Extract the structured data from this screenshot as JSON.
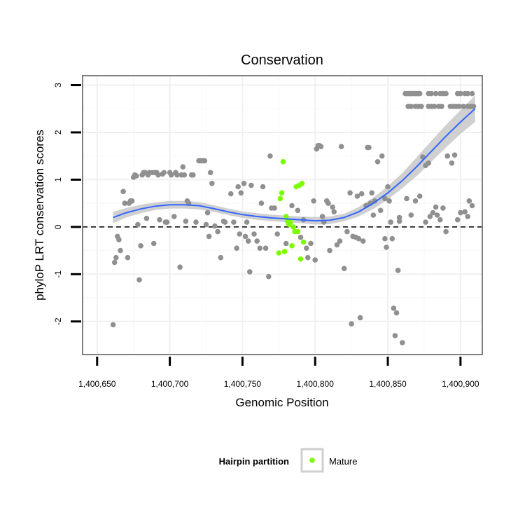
{
  "chart_data": {
    "type": "scatter",
    "title": "Conservation",
    "xlabel": "Genomic Position",
    "ylabel": "phyloP LRT conservation scores",
    "xlim": [
      1400640,
      1400915
    ],
    "ylim": [
      -2.7,
      3.2
    ],
    "x_ticks": [
      1400650,
      1400700,
      1400750,
      1400800,
      1400850,
      1400900
    ],
    "x_tick_labels": [
      "1,400,650",
      "1,400,700",
      "1,400,750",
      "1,400,800",
      "1,400,850",
      "1,400,900"
    ],
    "y_ticks": [
      -2,
      -1,
      0,
      1,
      2,
      3
    ],
    "y_tick_labels": [
      "-2",
      "-1",
      "0",
      "1",
      "2",
      "3"
    ],
    "grid": true,
    "reference_line": {
      "y": 0,
      "style": "dashed"
    },
    "legend": {
      "title": "Hairpin partition",
      "entries": [
        {
          "label": "Mature",
          "color": "#7CFC00"
        }
      ],
      "placement": "bottom"
    },
    "colors": {
      "points_other": "#909090",
      "points_mature": "#7CFC00",
      "smooth_line": "#3366FF",
      "confidence_band": "#C8C8C8",
      "panel_border": "#7f7f7f"
    },
    "series": [
      {
        "group": "other",
        "points": [
          [
            1400661,
            -2.07
          ],
          [
            1400662,
            -0.75
          ],
          [
            1400663,
            -0.65
          ],
          [
            1400664,
            -0.2
          ],
          [
            1400665,
            -0.27
          ],
          [
            1400666,
            -0.5
          ],
          [
            1400668,
            0.75
          ],
          [
            1400669,
            0.5
          ],
          [
            1400671,
            -0.65
          ],
          [
            1400672,
            0.5
          ],
          [
            1400673,
            0.55
          ],
          [
            1400674,
            0.55
          ],
          [
            1400675,
            1.05
          ],
          [
            1400676,
            1.1
          ],
          [
            1400677,
            1.08
          ],
          [
            1400678,
            0.05
          ],
          [
            1400679,
            -1.12
          ],
          [
            1400680,
            -0.4
          ],
          [
            1400681,
            1.1
          ],
          [
            1400682,
            1.15
          ],
          [
            1400683,
            1.15
          ],
          [
            1400684,
            0.18
          ],
          [
            1400685,
            1.1
          ],
          [
            1400686,
            1.15
          ],
          [
            1400688,
            1.15
          ],
          [
            1400689,
            -0.35
          ],
          [
            1400690,
            1.15
          ],
          [
            1400691,
            1.15
          ],
          [
            1400692,
            1.1
          ],
          [
            1400693,
            0.15
          ],
          [
            1400695,
            1.12
          ],
          [
            1400696,
            1.15
          ],
          [
            1400697,
            0.1
          ],
          [
            1400698,
            0.1
          ],
          [
            1400700,
            1.15
          ],
          [
            1400701,
            1.1
          ],
          [
            1400703,
            0.22
          ],
          [
            1400704,
            1.15
          ],
          [
            1400705,
            1.1
          ],
          [
            1400707,
            -0.85
          ],
          [
            1400708,
            1.1
          ],
          [
            1400709,
            1.27
          ],
          [
            1400710,
            1.1
          ],
          [
            1400711,
            0.12
          ],
          [
            1400712,
            0.55
          ],
          [
            1400713,
            0.5
          ],
          [
            1400715,
            1.1
          ],
          [
            1400716,
            1.1
          ],
          [
            1400718,
            0.1
          ],
          [
            1400720,
            1.4
          ],
          [
            1400721,
            1.4
          ],
          [
            1400722,
            1.4
          ],
          [
            1400723,
            1.4
          ],
          [
            1400724,
            1.4
          ],
          [
            1400725,
            0.05
          ],
          [
            1400726,
            0.3
          ],
          [
            1400727,
            -0.2
          ],
          [
            1400728,
            1.15
          ],
          [
            1400729,
            0.92
          ],
          [
            1400731,
            0.02
          ],
          [
            1400733,
            -0.1
          ],
          [
            1400735,
            -0.65
          ],
          [
            1400737,
            0.12
          ],
          [
            1400738,
            0.1
          ],
          [
            1400742,
            0.7
          ],
          [
            1400744,
            0.1
          ],
          [
            1400746,
            -0.45
          ],
          [
            1400747,
            0.85
          ],
          [
            1400748,
            -0.15
          ],
          [
            1400749,
            0.72
          ],
          [
            1400751,
            0.92
          ],
          [
            1400752,
            -0.2
          ],
          [
            1400753,
            0.1
          ],
          [
            1400754,
            -0.3
          ],
          [
            1400755,
            -0.95
          ],
          [
            1400756,
            0.88
          ],
          [
            1400758,
            -0.15
          ],
          [
            1400760,
            -0.3
          ],
          [
            1400762,
            -0.45
          ],
          [
            1400763,
            0.5
          ],
          [
            1400764,
            0.85
          ],
          [
            1400766,
            -0.45
          ],
          [
            1400768,
            -1.05
          ],
          [
            1400769,
            1.5
          ],
          [
            1400770,
            0.4
          ],
          [
            1400772,
            0.4
          ],
          [
            1400774,
            -0.15
          ],
          [
            1400780,
            -0.35
          ],
          [
            1400784,
            0.45
          ],
          [
            1400788,
            0.35
          ],
          [
            1400790,
            -0.22
          ],
          [
            1400792,
            0.15
          ],
          [
            1400794,
            -0.45
          ],
          [
            1400795,
            -0.65
          ],
          [
            1400797,
            -0.35
          ],
          [
            1400799,
            0.55
          ],
          [
            1400800,
            -0.7
          ],
          [
            1400801,
            1.65
          ],
          [
            1400802,
            1.72
          ],
          [
            1400803,
            1.72
          ],
          [
            1400804,
            1.7
          ],
          [
            1400805,
            0.22
          ],
          [
            1400806,
            0.1
          ],
          [
            1400808,
            0.55
          ],
          [
            1400809,
            0.5
          ],
          [
            1400810,
            -0.5
          ],
          [
            1400812,
            0.42
          ],
          [
            1400813,
            0.32
          ],
          [
            1400815,
            -0.38
          ],
          [
            1400817,
            -0.3
          ],
          [
            1400818,
            1.7
          ],
          [
            1400820,
            -0.88
          ],
          [
            1400822,
            -0.1
          ],
          [
            1400824,
            0.72
          ],
          [
            1400825,
            -2.05
          ],
          [
            1400826,
            -0.2
          ],
          [
            1400828,
            -0.22
          ],
          [
            1400829,
            0.65
          ],
          [
            1400830,
            -0.25
          ],
          [
            1400831,
            -1.92
          ],
          [
            1400832,
            0.7
          ],
          [
            1400833,
            -0.3
          ],
          [
            1400835,
            0.45
          ],
          [
            1400836,
            1.68
          ],
          [
            1400837,
            1.68
          ],
          [
            1400838,
            0.5
          ],
          [
            1400839,
            0.72
          ],
          [
            1400840,
            0.25
          ],
          [
            1400841,
            0.55
          ],
          [
            1400843,
            1.38
          ],
          [
            1400845,
            0.35
          ],
          [
            1400846,
            1.5
          ],
          [
            1400848,
            -0.25
          ],
          [
            1400849,
            -0.43
          ],
          [
            1400851,
            0.55
          ],
          [
            1400852,
            0.1
          ],
          [
            1400853,
            -0.25
          ],
          [
            1400854,
            -1.72
          ],
          [
            1400855,
            -2.3
          ],
          [
            1400856,
            -1.82
          ],
          [
            1400857,
            -0.92
          ],
          [
            1400858,
            0.12
          ],
          [
            1400860,
            -2.45
          ],
          [
            1400862,
            2.82
          ],
          [
            1400863,
            2.82
          ],
          [
            1400864,
            2.82
          ],
          [
            1400865,
            2.82
          ],
          [
            1400866,
            2.82
          ],
          [
            1400867,
            2.82
          ],
          [
            1400868,
            2.82
          ],
          [
            1400869,
            2.82
          ],
          [
            1400870,
            2.82
          ],
          [
            1400871,
            2.82
          ],
          [
            1400872,
            2.82
          ],
          [
            1400864,
            2.55
          ],
          [
            1400866,
            2.55
          ],
          [
            1400869,
            2.55
          ],
          [
            1400871,
            2.55
          ],
          [
            1400873,
            2.55
          ],
          [
            1400878,
            2.55
          ],
          [
            1400880,
            2.55
          ],
          [
            1400882,
            2.55
          ],
          [
            1400885,
            2.55
          ],
          [
            1400887,
            2.55
          ],
          [
            1400893,
            2.55
          ],
          [
            1400895,
            2.55
          ],
          [
            1400897,
            2.55
          ],
          [
            1400899,
            2.55
          ],
          [
            1400902,
            2.55
          ],
          [
            1400905,
            2.55
          ],
          [
            1400907,
            2.55
          ],
          [
            1400909,
            2.55
          ],
          [
            1400878,
            2.82
          ],
          [
            1400880,
            2.82
          ],
          [
            1400883,
            2.82
          ],
          [
            1400886,
            2.82
          ],
          [
            1400888,
            2.82
          ],
          [
            1400890,
            2.82
          ],
          [
            1400898,
            2.82
          ],
          [
            1400900,
            2.82
          ],
          [
            1400903,
            2.82
          ],
          [
            1400905,
            2.82
          ],
          [
            1400908,
            2.82
          ],
          [
            1400863,
            0.6
          ],
          [
            1400866,
            0.25
          ],
          [
            1400869,
            0.55
          ],
          [
            1400872,
            0.65
          ],
          [
            1400874,
            1.48
          ],
          [
            1400876,
            1.3
          ],
          [
            1400878,
            1.35
          ],
          [
            1400879,
            0.22
          ],
          [
            1400881,
            0.3
          ],
          [
            1400883,
            0.42
          ],
          [
            1400884,
            0.25
          ],
          [
            1400886,
            0.15
          ],
          [
            1400888,
            0.4
          ],
          [
            1400890,
            -0.1
          ],
          [
            1400891,
            1.5
          ],
          [
            1400894,
            1.35
          ],
          [
            1400896,
            1.52
          ],
          [
            1400898,
            0.15
          ],
          [
            1400900,
            0.3
          ],
          [
            1400903,
            0.32
          ],
          [
            1400905,
            0.22
          ],
          [
            1400906,
            0.55
          ],
          [
            1400908,
            0.45
          ],
          [
            1400850,
            0.85
          ],
          [
            1400858,
            0.2
          ],
          [
            1400848,
            0.6
          ],
          [
            1400876,
            0.1
          ]
        ]
      },
      {
        "group": "Mature",
        "points": [
          [
            1400775,
            -0.55
          ],
          [
            1400776,
            0.6
          ],
          [
            1400777,
            0.72
          ],
          [
            1400778,
            1.38
          ],
          [
            1400779,
            -0.52
          ],
          [
            1400780,
            0.22
          ],
          [
            1400781,
            0.12
          ],
          [
            1400782,
            0.05
          ],
          [
            1400783,
            0.1
          ],
          [
            1400784,
            -0.4
          ],
          [
            1400785,
            0.0
          ],
          [
            1400786,
            -0.1
          ],
          [
            1400787,
            0.85
          ],
          [
            1400788,
            -0.1
          ],
          [
            1400789,
            0.88
          ],
          [
            1400790,
            -0.68
          ],
          [
            1400791,
            0.92
          ],
          [
            1400792,
            -0.32
          ]
        ]
      }
    ],
    "smooth": {
      "x": [
        1400661,
        1400670,
        1400680,
        1400690,
        1400700,
        1400710,
        1400720,
        1400730,
        1400740,
        1400750,
        1400760,
        1400770,
        1400780,
        1400790,
        1400800,
        1400810,
        1400820,
        1400830,
        1400840,
        1400850,
        1400860,
        1400870,
        1400880,
        1400890,
        1400900,
        1400910
      ],
      "y": [
        0.2,
        0.3,
        0.38,
        0.44,
        0.47,
        0.47,
        0.45,
        0.39,
        0.32,
        0.26,
        0.22,
        0.19,
        0.17,
        0.15,
        0.13,
        0.14,
        0.2,
        0.32,
        0.5,
        0.72,
        0.98,
        1.28,
        1.6,
        1.92,
        2.22,
        2.5
      ],
      "lower": [
        0.08,
        0.2,
        0.29,
        0.36,
        0.39,
        0.39,
        0.37,
        0.32,
        0.25,
        0.19,
        0.15,
        0.12,
        0.1,
        0.08,
        0.05,
        0.06,
        0.12,
        0.22,
        0.38,
        0.58,
        0.82,
        1.08,
        1.38,
        1.68,
        1.97,
        2.22
      ],
      "upper": [
        0.32,
        0.4,
        0.47,
        0.52,
        0.55,
        0.55,
        0.53,
        0.46,
        0.39,
        0.33,
        0.29,
        0.26,
        0.24,
        0.22,
        0.21,
        0.22,
        0.28,
        0.42,
        0.62,
        0.86,
        1.14,
        1.48,
        1.82,
        2.16,
        2.47,
        2.78
      ]
    }
  }
}
